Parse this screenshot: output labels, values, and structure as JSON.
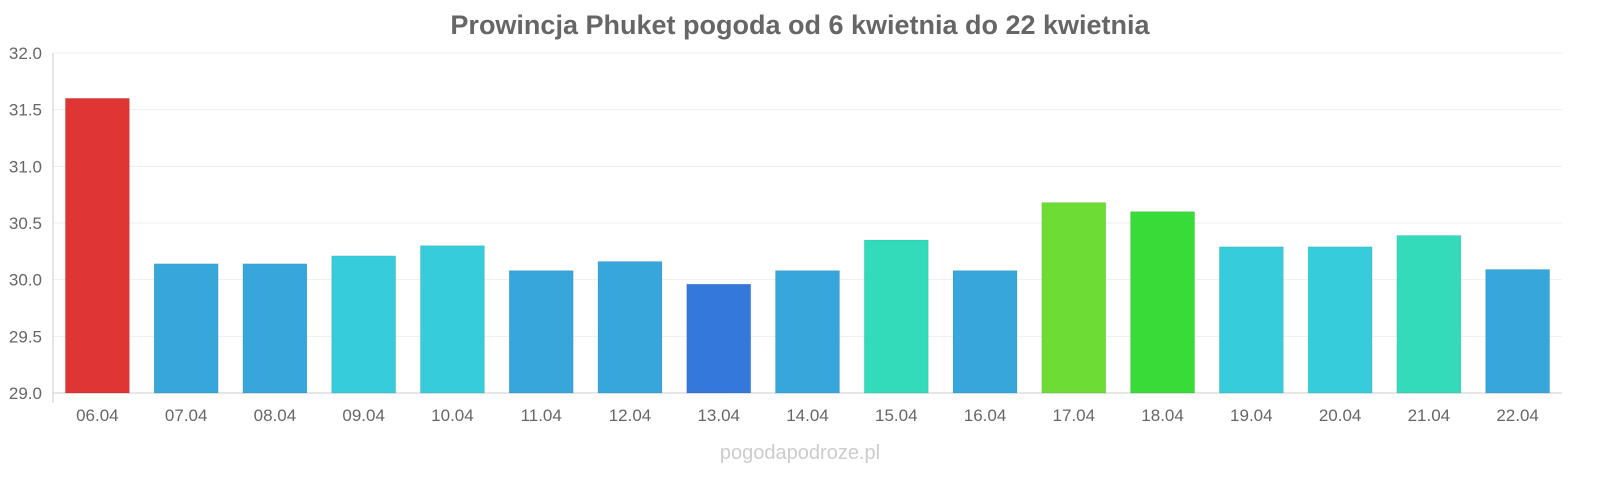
{
  "chart_data": {
    "type": "bar",
    "title": "Prowincja Phuket pogoda od 6 kwietnia do 22 kwietnia",
    "xlabel": "",
    "ylabel": "",
    "ylim": [
      29.0,
      32.0
    ],
    "yticks": [
      "29.0",
      "29.5",
      "30.0",
      "30.5",
      "31.0",
      "31.5",
      "32.0"
    ],
    "grid": true,
    "categories": [
      "06.04",
      "07.04",
      "08.04",
      "09.04",
      "10.04",
      "11.04",
      "12.04",
      "13.04",
      "14.04",
      "15.04",
      "16.04",
      "17.04",
      "18.04",
      "19.04",
      "20.04",
      "21.04",
      "22.04"
    ],
    "values": [
      31.6,
      30.14,
      30.14,
      30.21,
      30.3,
      30.08,
      30.16,
      29.96,
      30.08,
      30.35,
      30.08,
      30.68,
      30.6,
      30.29,
      30.29,
      30.39,
      30.09
    ],
    "colors": [
      "#e03535",
      "#37a6db",
      "#37a6db",
      "#36ccdb",
      "#36ccdb",
      "#37a6db",
      "#37a6db",
      "#3478db",
      "#37a6db",
      "#33dbbb",
      "#37a6db",
      "#6ddc35",
      "#38db38",
      "#36ccdb",
      "#36ccdb",
      "#33dbbb",
      "#37a6db"
    ]
  },
  "watermark": "pogodapodroze.pl"
}
